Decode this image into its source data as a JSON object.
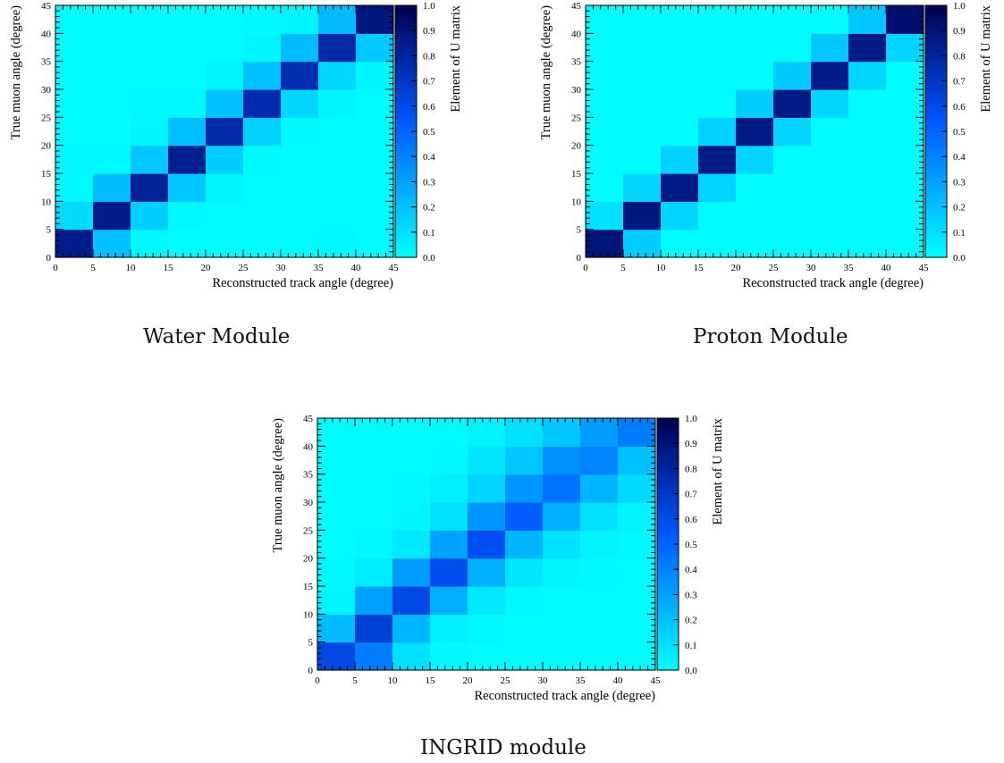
{
  "chart_data": [
    {
      "type": "heatmap",
      "caption": "Water Module",
      "xlabel": "Reconstructed track angle (degree)",
      "ylabel": "True muon angle (degree)",
      "colorbar_label": "Element of U matrix",
      "xlim": [
        0,
        45
      ],
      "ylim": [
        0,
        45
      ],
      "zlim": [
        0,
        1
      ],
      "x_ticks": [
        "0",
        "5",
        "10",
        "15",
        "20",
        "25",
        "30",
        "35",
        "40",
        "45"
      ],
      "y_ticks": [
        "0",
        "5",
        "10",
        "15",
        "20",
        "25",
        "30",
        "35",
        "40",
        "45"
      ],
      "colorbar_ticks": [
        "0.0",
        "0.1",
        "0.2",
        "0.3",
        "0.4",
        "0.5",
        "0.6",
        "0.7",
        "0.8",
        "0.9",
        "1.0"
      ],
      "x_bins": [
        "0-5",
        "5-10",
        "10-15",
        "15-20",
        "20-25",
        "25-30",
        "30-35",
        "35-40",
        "40-45"
      ],
      "y_bins": [
        "0-5",
        "5-10",
        "10-15",
        "15-20",
        "20-25",
        "25-30",
        "30-35",
        "35-40",
        "40-45"
      ],
      "matrix": [
        [
          0.85,
          0.2,
          0.02,
          0.01,
          0.01,
          0.01,
          0.01,
          0.02,
          0.01
        ],
        [
          0.12,
          0.85,
          0.16,
          0.02,
          0.01,
          0.01,
          0.01,
          0.01,
          0.01
        ],
        [
          0.02,
          0.22,
          0.82,
          0.18,
          0.03,
          0.01,
          0.01,
          0.01,
          0.01
        ],
        [
          0.02,
          0.02,
          0.18,
          0.83,
          0.16,
          0.02,
          0.01,
          0.01,
          0.01
        ],
        [
          0.01,
          0.01,
          0.03,
          0.2,
          0.78,
          0.15,
          0.02,
          0.01,
          0.01
        ],
        [
          0.01,
          0.01,
          0.02,
          0.02,
          0.2,
          0.76,
          0.13,
          0.03,
          0.01
        ],
        [
          0.01,
          0.01,
          0.01,
          0.01,
          0.03,
          0.2,
          0.75,
          0.13,
          0.03
        ],
        [
          0.01,
          0.01,
          0.01,
          0.01,
          0.01,
          0.03,
          0.22,
          0.78,
          0.18
        ],
        [
          0.01,
          0.01,
          0.01,
          0.01,
          0.01,
          0.02,
          0.03,
          0.22,
          0.88
        ]
      ]
    },
    {
      "type": "heatmap",
      "caption": "Proton Module",
      "xlabel": "Reconstructed track angle (degree)",
      "ylabel": "True muon angle (degree)",
      "colorbar_label": "Element of U matrix",
      "xlim": [
        0,
        45
      ],
      "ylim": [
        0,
        45
      ],
      "zlim": [
        0,
        1
      ],
      "x_ticks": [
        "0",
        "5",
        "10",
        "15",
        "20",
        "25",
        "30",
        "35",
        "40",
        "45"
      ],
      "y_ticks": [
        "0",
        "5",
        "10",
        "15",
        "20",
        "25",
        "30",
        "35",
        "40",
        "45"
      ],
      "colorbar_ticks": [
        "0.0",
        "0.1",
        "0.2",
        "0.3",
        "0.4",
        "0.5",
        "0.6",
        "0.7",
        "0.8",
        "0.9",
        "1.0"
      ],
      "x_bins": [
        "0-5",
        "5-10",
        "10-15",
        "15-20",
        "20-25",
        "25-30",
        "30-35",
        "35-40",
        "40-45"
      ],
      "y_bins": [
        "0-5",
        "5-10",
        "10-15",
        "15-20",
        "20-25",
        "25-30",
        "30-35",
        "35-40",
        "40-45"
      ],
      "matrix": [
        [
          0.9,
          0.16,
          0.01,
          0.01,
          0.01,
          0.01,
          0.01,
          0.01,
          0.01
        ],
        [
          0.1,
          0.88,
          0.14,
          0.01,
          0.01,
          0.01,
          0.01,
          0.01,
          0.01
        ],
        [
          0.01,
          0.14,
          0.86,
          0.14,
          0.01,
          0.01,
          0.01,
          0.01,
          0.01
        ],
        [
          0.01,
          0.01,
          0.15,
          0.86,
          0.14,
          0.01,
          0.01,
          0.01,
          0.01
        ],
        [
          0.01,
          0.01,
          0.01,
          0.15,
          0.86,
          0.14,
          0.01,
          0.01,
          0.01
        ],
        [
          0.01,
          0.01,
          0.01,
          0.01,
          0.16,
          0.86,
          0.13,
          0.01,
          0.01
        ],
        [
          0.01,
          0.01,
          0.01,
          0.01,
          0.01,
          0.17,
          0.85,
          0.13,
          0.01
        ],
        [
          0.01,
          0.01,
          0.01,
          0.01,
          0.01,
          0.01,
          0.18,
          0.86,
          0.14
        ],
        [
          0.01,
          0.01,
          0.01,
          0.01,
          0.01,
          0.01,
          0.01,
          0.18,
          0.92
        ]
      ]
    },
    {
      "type": "heatmap",
      "caption": "INGRID module",
      "xlabel": "Reconstructed track angle (degree)",
      "ylabel": "True muon angle (degree)",
      "colorbar_label": "Element of U matrix",
      "xlim": [
        0,
        45
      ],
      "ylim": [
        0,
        45
      ],
      "zlim": [
        0,
        1
      ],
      "x_ticks": [
        "0",
        "5",
        "10",
        "15",
        "20",
        "25",
        "30",
        "35",
        "40",
        "45"
      ],
      "y_ticks": [
        "0",
        "5",
        "10",
        "15",
        "20",
        "25",
        "30",
        "35",
        "40",
        "45"
      ],
      "colorbar_ticks": [
        "0.0",
        "0.1",
        "0.2",
        "0.3",
        "0.4",
        "0.5",
        "0.6",
        "0.7",
        "0.8",
        "0.9",
        "1.0"
      ],
      "x_bins": [
        "0-5",
        "5-10",
        "10-15",
        "15-20",
        "20-25",
        "25-30",
        "30-35",
        "35-40",
        "40-45"
      ],
      "y_bins": [
        "0-5",
        "5-10",
        "10-15",
        "15-20",
        "20-25",
        "25-30",
        "30-35",
        "35-40",
        "40-45"
      ],
      "matrix": [
        [
          0.62,
          0.42,
          0.1,
          0.02,
          0.01,
          0.01,
          0.01,
          0.01,
          0.01
        ],
        [
          0.22,
          0.66,
          0.24,
          0.05,
          0.02,
          0.01,
          0.01,
          0.01,
          0.01
        ],
        [
          0.03,
          0.3,
          0.62,
          0.26,
          0.07,
          0.02,
          0.01,
          0.01,
          0.01
        ],
        [
          0.02,
          0.06,
          0.32,
          0.6,
          0.26,
          0.08,
          0.03,
          0.02,
          0.01
        ],
        [
          0.01,
          0.02,
          0.07,
          0.3,
          0.58,
          0.24,
          0.09,
          0.04,
          0.02
        ],
        [
          0.01,
          0.01,
          0.03,
          0.1,
          0.34,
          0.52,
          0.26,
          0.1,
          0.04
        ],
        [
          0.01,
          0.01,
          0.02,
          0.05,
          0.14,
          0.34,
          0.45,
          0.24,
          0.12
        ],
        [
          0.01,
          0.01,
          0.01,
          0.02,
          0.08,
          0.18,
          0.36,
          0.4,
          0.2
        ],
        [
          0.01,
          0.01,
          0.01,
          0.01,
          0.04,
          0.1,
          0.18,
          0.32,
          0.42
        ]
      ]
    }
  ],
  "colors": {
    "scale_low": "#00ffff",
    "scale_mid": "#0055ff",
    "scale_high": "#000050",
    "frame": "#000000"
  }
}
